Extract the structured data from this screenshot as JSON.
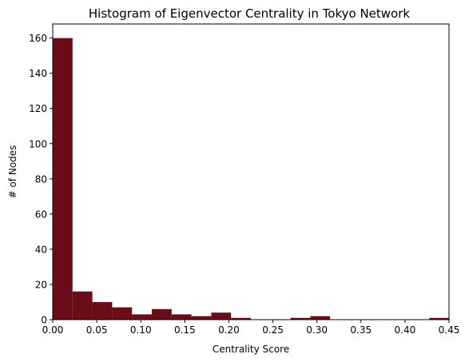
{
  "chart_data": {
    "type": "bar",
    "title": "Histogram of Eigenvector Centrality in Tokyo Network",
    "xlabel": "Centrality Score",
    "ylabel": "# of Nodes",
    "bar_color": "#6b0d18",
    "xlim": [
      0,
      0.45
    ],
    "ylim": [
      0,
      168
    ],
    "grid": false,
    "legend": "none",
    "x_ticks": [
      0.0,
      0.05,
      0.1,
      0.15,
      0.2,
      0.25,
      0.3,
      0.35,
      0.4,
      0.45
    ],
    "x_tick_labels": [
      "0.00",
      "0.05",
      "0.10",
      "0.15",
      "0.20",
      "0.25",
      "0.30",
      "0.35",
      "0.40",
      "0.45"
    ],
    "y_ticks": [
      0,
      20,
      40,
      60,
      80,
      100,
      120,
      140,
      160
    ],
    "y_tick_labels": [
      "0",
      "20",
      "40",
      "60",
      "80",
      "100",
      "120",
      "140",
      "160"
    ],
    "bin_edges": [
      0.0,
      0.0225,
      0.045,
      0.0675,
      0.09,
      0.1125,
      0.135,
      0.1575,
      0.18,
      0.2025,
      0.225,
      0.2475,
      0.27,
      0.2925,
      0.315,
      0.3375,
      0.36,
      0.3825,
      0.405,
      0.4275,
      0.45
    ],
    "values": [
      160,
      16,
      10,
      7,
      3,
      6,
      3,
      2,
      4,
      1,
      0,
      0,
      1,
      2,
      0,
      0,
      0,
      0,
      0,
      1
    ]
  }
}
